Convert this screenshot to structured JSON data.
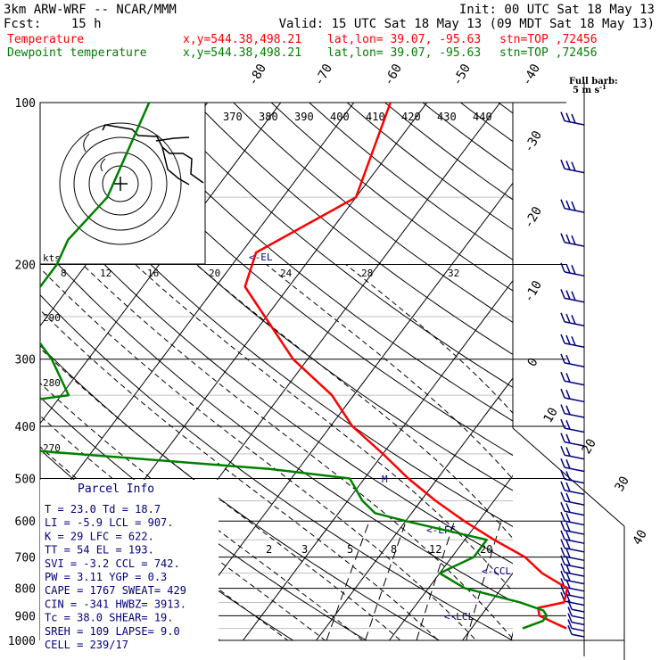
{
  "header": {
    "model": "3km ARW-WRF -- NCAR/MMM",
    "forecast": "Fcst:    15 h",
    "init": "Init: 00 UTC Sat 18 May 13",
    "valid": "Valid: 15 UTC Sat 18 May 13 (09 MDT Sat 18 May 13)",
    "temp_line": {
      "label": "Temperature",
      "xy": "x,y=544.38,498.21",
      "latlon": "lat,lon= 39.07, -95.63",
      "stn": "stn=TOP ,72456"
    },
    "dew_line": {
      "label": "Dewpoint temperature",
      "xy": "x,y=544.38,498.21",
      "latlon": "lat,lon= 39.07, -95.63",
      "stn": "stn=TOP ,72456"
    }
  },
  "barb_label": {
    "line1": "Full barb:",
    "line2": "5 m s",
    "exp": "-1"
  },
  "colors": {
    "temperature": "#ff0000",
    "dewpoint": "#008000",
    "barbs": "#000080",
    "text_blue": "#000080"
  },
  "chart_data": {
    "type": "line",
    "diagram": "skew-T log-p",
    "y_axis": {
      "ticks": [
        "100",
        "200",
        "300",
        "400",
        "500",
        "600",
        "700",
        "800",
        "900",
        "1000"
      ],
      "scale": "log"
    },
    "isotherm_labels": [
      "-80",
      "-70",
      "-60",
      "-50",
      "-40",
      "-30",
      "-20",
      "-10",
      "0",
      "10",
      "20",
      "30",
      "40"
    ],
    "dry_adiabat_labels": [
      "270",
      "280",
      "290"
    ],
    "moist_adiabat_labels": [
      "370",
      "380",
      "390",
      "400",
      "410",
      "420",
      "430",
      "440"
    ],
    "mixing_ratio_labels": [
      "2",
      "3",
      "5",
      "8",
      "12",
      "20"
    ],
    "hodograph_speed_labels": [
      "kts",
      "8",
      "12",
      "16",
      "20",
      "24",
      "28",
      "32"
    ],
    "level_markers": [
      "<-EL",
      "<-LFC",
      "<-CCL",
      "<-LCL",
      "M"
    ],
    "series": [
      {
        "name": "Temperature",
        "points": [
          [
            100,
            -55
          ],
          [
            150,
            -50
          ],
          [
            190,
            -58
          ],
          [
            220,
            -56
          ],
          [
            300,
            -42
          ],
          [
            350,
            -33
          ],
          [
            400,
            -27
          ],
          [
            450,
            -20
          ],
          [
            500,
            -14
          ],
          [
            550,
            -8
          ],
          [
            600,
            -2
          ],
          [
            650,
            4
          ],
          [
            700,
            10
          ],
          [
            750,
            14
          ],
          [
            800,
            19
          ],
          [
            850,
            20
          ],
          [
            870,
            17
          ],
          [
            900,
            18
          ],
          [
            930,
            21
          ],
          [
            950,
            23
          ]
        ]
      },
      {
        "name": "Dewpoint temperature",
        "points": [
          [
            100,
            -88
          ],
          [
            150,
            -84
          ],
          [
            180,
            -85
          ],
          [
            200,
            -84
          ],
          [
            230,
            -84
          ],
          [
            270,
            -80
          ],
          [
            300,
            -75
          ],
          [
            350,
            -69
          ],
          [
            380,
            -86
          ],
          [
            420,
            -92
          ],
          [
            450,
            -62
          ],
          [
            480,
            -34
          ],
          [
            500,
            -22
          ],
          [
            550,
            -18
          ],
          [
            580,
            -15
          ],
          [
            600,
            -10
          ],
          [
            650,
            3
          ],
          [
            700,
            3
          ],
          [
            750,
            0
          ],
          [
            800,
            5
          ],
          [
            850,
            14
          ],
          [
            880,
            18
          ],
          [
            900,
            19
          ],
          [
            920,
            19
          ],
          [
            950,
            17
          ]
        ]
      }
    ]
  },
  "parcel_info": {
    "title": "Parcel Info",
    "rows": [
      "T  =   23.0  Td =  18.7",
      "LI =   -5.9  LCL =  907.",
      "K  =     29  LFC =  622.",
      "TT =     54  EL  =  193.",
      "SVI =  -3.2  CCL =  742.",
      "PW  =  3.11  YGP =   0.3",
      "CAPE =  1767 SWEAT=  429",
      "CIN  =  -341 HWBZ= 3913.",
      "Tc  =  38.0  SHEAR=  19.",
      "SREH =   109 LAPSE=  9.0",
      "CELL = 239/17"
    ]
  }
}
